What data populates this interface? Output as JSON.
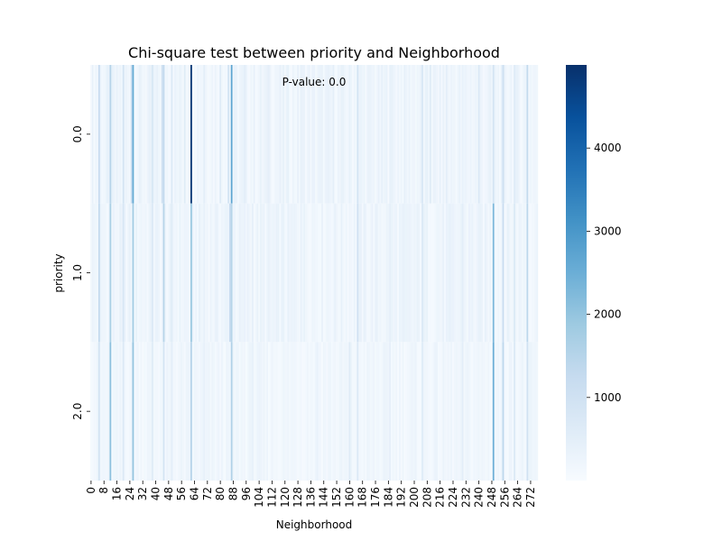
{
  "chart_data": {
    "type": "heatmap",
    "title": "Chi-square test between priority and Neighborhood",
    "xlabel": "Neighborhood",
    "ylabel": "priority",
    "annotation": "P-value: 0.0",
    "x_count": 277,
    "x_tick_labels": [
      "0",
      "8",
      "16",
      "24",
      "32",
      "40",
      "48",
      "56",
      "64",
      "72",
      "80",
      "88",
      "96",
      "104",
      "112",
      "120",
      "128",
      "136",
      "144",
      "152",
      "160",
      "168",
      "176",
      "184",
      "192",
      "200",
      "208",
      "216",
      "224",
      "232",
      "240",
      "248",
      "256",
      "264",
      "272"
    ],
    "y_categories": [
      "0.0",
      "1.0",
      "2.0"
    ],
    "colorbar": {
      "min": 0,
      "max": 5000,
      "ticks": [
        1000,
        2000,
        3000,
        4000
      ]
    },
    "colormap": [
      "#f7fbff",
      "#deebf7",
      "#c6dbef",
      "#9ecae1",
      "#6baed6",
      "#4292c6",
      "#2171b5",
      "#08519c",
      "#08306b"
    ],
    "rows": [
      {
        "category": "0.0",
        "base_value": 200,
        "highlights": [
          {
            "x": 5,
            "value": 1200
          },
          {
            "x": 12,
            "value": 1500
          },
          {
            "x": 20,
            "value": 900
          },
          {
            "x": 25,
            "value": 1100
          },
          {
            "x": 26,
            "value": 2600
          },
          {
            "x": 38,
            "value": 800
          },
          {
            "x": 44,
            "value": 1000
          },
          {
            "x": 45,
            "value": 1300
          },
          {
            "x": 50,
            "value": 700
          },
          {
            "x": 58,
            "value": 600
          },
          {
            "x": 62,
            "value": 4900
          },
          {
            "x": 70,
            "value": 500
          },
          {
            "x": 80,
            "value": 600
          },
          {
            "x": 85,
            "value": 900
          },
          {
            "x": 87,
            "value": 2700
          },
          {
            "x": 95,
            "value": 500
          },
          {
            "x": 110,
            "value": 450
          },
          {
            "x": 130,
            "value": 400
          },
          {
            "x": 150,
            "value": 450
          },
          {
            "x": 165,
            "value": 900
          },
          {
            "x": 185,
            "value": 400
          },
          {
            "x": 205,
            "value": 800
          },
          {
            "x": 210,
            "value": 600
          },
          {
            "x": 220,
            "value": 500
          },
          {
            "x": 240,
            "value": 700
          },
          {
            "x": 249,
            "value": 900
          },
          {
            "x": 255,
            "value": 1100
          },
          {
            "x": 262,
            "value": 600
          },
          {
            "x": 270,
            "value": 1300
          }
        ]
      },
      {
        "category": "1.0",
        "base_value": 200,
        "highlights": [
          {
            "x": 5,
            "value": 1300
          },
          {
            "x": 12,
            "value": 1700
          },
          {
            "x": 20,
            "value": 800
          },
          {
            "x": 26,
            "value": 1800
          },
          {
            "x": 38,
            "value": 700
          },
          {
            "x": 45,
            "value": 1500
          },
          {
            "x": 50,
            "value": 600
          },
          {
            "x": 62,
            "value": 1900
          },
          {
            "x": 70,
            "value": 400
          },
          {
            "x": 86,
            "value": 1200
          },
          {
            "x": 87,
            "value": 1500
          },
          {
            "x": 100,
            "value": 450
          },
          {
            "x": 130,
            "value": 400
          },
          {
            "x": 165,
            "value": 1000
          },
          {
            "x": 185,
            "value": 450
          },
          {
            "x": 205,
            "value": 700
          },
          {
            "x": 230,
            "value": 500
          },
          {
            "x": 249,
            "value": 2300
          },
          {
            "x": 255,
            "value": 1200
          },
          {
            "x": 262,
            "value": 700
          },
          {
            "x": 270,
            "value": 1400
          }
        ]
      },
      {
        "category": "2.0",
        "base_value": 150,
        "highlights": [
          {
            "x": 5,
            "value": 900
          },
          {
            "x": 12,
            "value": 2100
          },
          {
            "x": 20,
            "value": 700
          },
          {
            "x": 26,
            "value": 2000
          },
          {
            "x": 38,
            "value": 600
          },
          {
            "x": 45,
            "value": 900
          },
          {
            "x": 50,
            "value": 500
          },
          {
            "x": 62,
            "value": 1500
          },
          {
            "x": 70,
            "value": 400
          },
          {
            "x": 87,
            "value": 1600
          },
          {
            "x": 100,
            "value": 400
          },
          {
            "x": 140,
            "value": 350
          },
          {
            "x": 160,
            "value": 600
          },
          {
            "x": 165,
            "value": 700
          },
          {
            "x": 185,
            "value": 450
          },
          {
            "x": 205,
            "value": 600
          },
          {
            "x": 230,
            "value": 500
          },
          {
            "x": 249,
            "value": 2500
          },
          {
            "x": 255,
            "value": 1400
          },
          {
            "x": 262,
            "value": 700
          },
          {
            "x": 270,
            "value": 1000
          }
        ]
      }
    ]
  }
}
